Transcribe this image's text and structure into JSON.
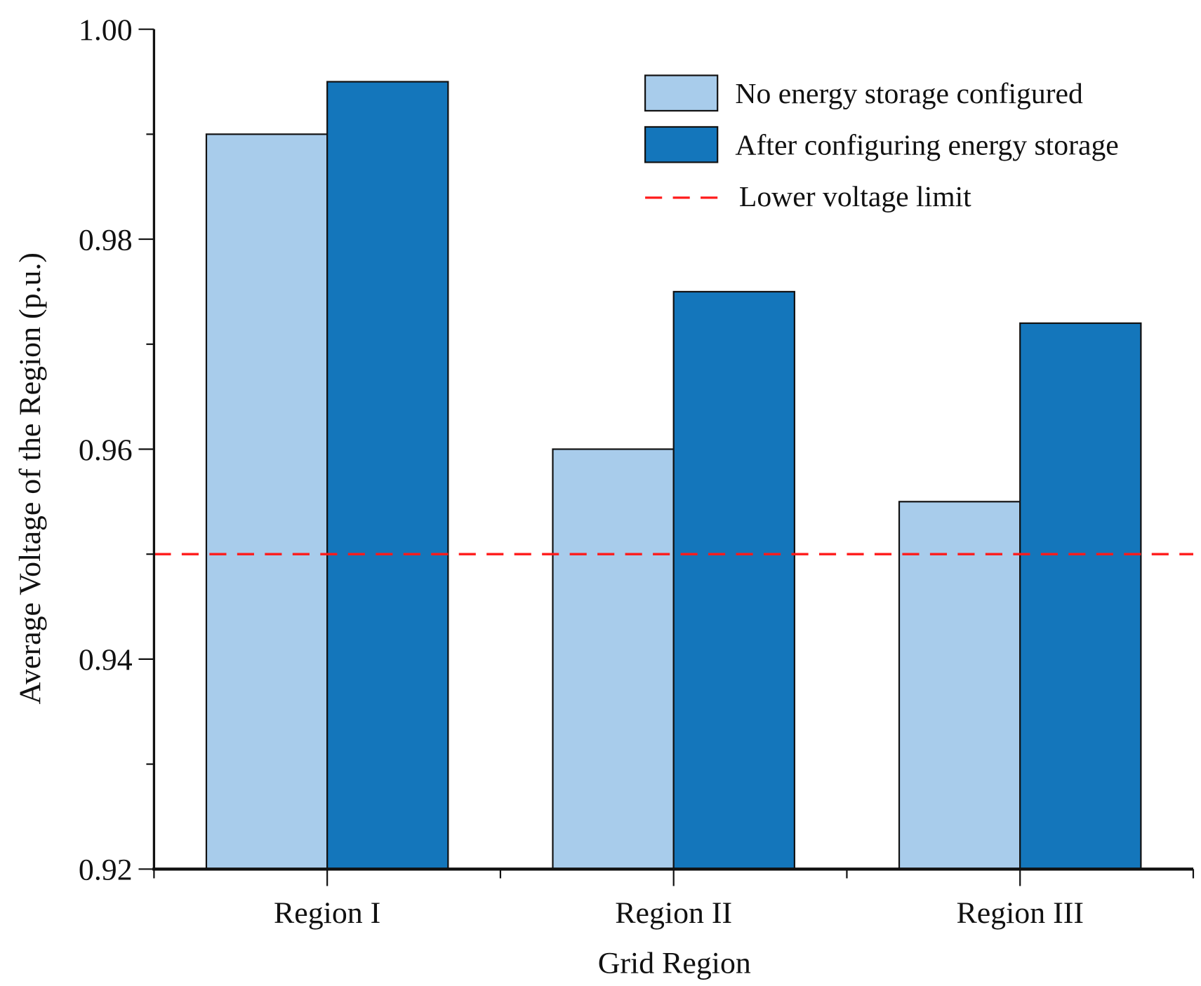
{
  "chart_data": {
    "type": "bar",
    "title": "",
    "xlabel": "Grid Region",
    "ylabel": "Average Voltage of the Region (p.u.)",
    "categories": [
      "Region I",
      "Region II",
      "Region III"
    ],
    "series": [
      {
        "name": "No energy storage configured",
        "values": [
          0.99,
          0.96,
          0.955
        ],
        "color": "#a8cceb"
      },
      {
        "name": "After configuring energy storage",
        "values": [
          0.995,
          0.975,
          0.972
        ],
        "color": "#1476bb"
      }
    ],
    "reference_line": {
      "name": "Lower voltage limit",
      "value": 0.95,
      "color": "#ff1a1a",
      "style": "dashed"
    },
    "ylim": [
      0.92,
      1.0
    ],
    "yticks": [
      "0.92",
      "0.94",
      "0.96",
      "0.98",
      "1.00"
    ],
    "ytick_values": [
      0.92,
      0.94,
      0.96,
      0.98,
      1.0
    ],
    "grid": false,
    "legend_position": "top-right"
  }
}
